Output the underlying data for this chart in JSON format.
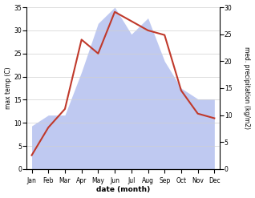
{
  "months": [
    "Jan",
    "Feb",
    "Mar",
    "Apr",
    "May",
    "Jun",
    "Jul",
    "Aug",
    "Sep",
    "Oct",
    "Nov",
    "Dec"
  ],
  "month_positions": [
    0,
    1,
    2,
    3,
    4,
    5,
    6,
    7,
    8,
    9,
    10,
    11
  ],
  "temperature": [
    3,
    9,
    13,
    28,
    25,
    34,
    32,
    30,
    29,
    17,
    12,
    11
  ],
  "precipitation": [
    8,
    10,
    10,
    18,
    27,
    30,
    25,
    28,
    20,
    15,
    13,
    13
  ],
  "temp_color": "#c0392b",
  "precip_color": "#b8c4f0",
  "temp_ylim": [
    0,
    35
  ],
  "precip_ylim": [
    0,
    30
  ],
  "temp_yticks": [
    0,
    5,
    10,
    15,
    20,
    25,
    30,
    35
  ],
  "precip_yticks": [
    0,
    5,
    10,
    15,
    20,
    25,
    30
  ],
  "xlabel": "date (month)",
  "ylabel_left": "max temp (C)",
  "ylabel_right": "med. precipitation (kg/m2)",
  "bg_color": "#ffffff",
  "grid_color": "#d0d0d0",
  "figsize": [
    3.18,
    2.47
  ],
  "dpi": 100
}
